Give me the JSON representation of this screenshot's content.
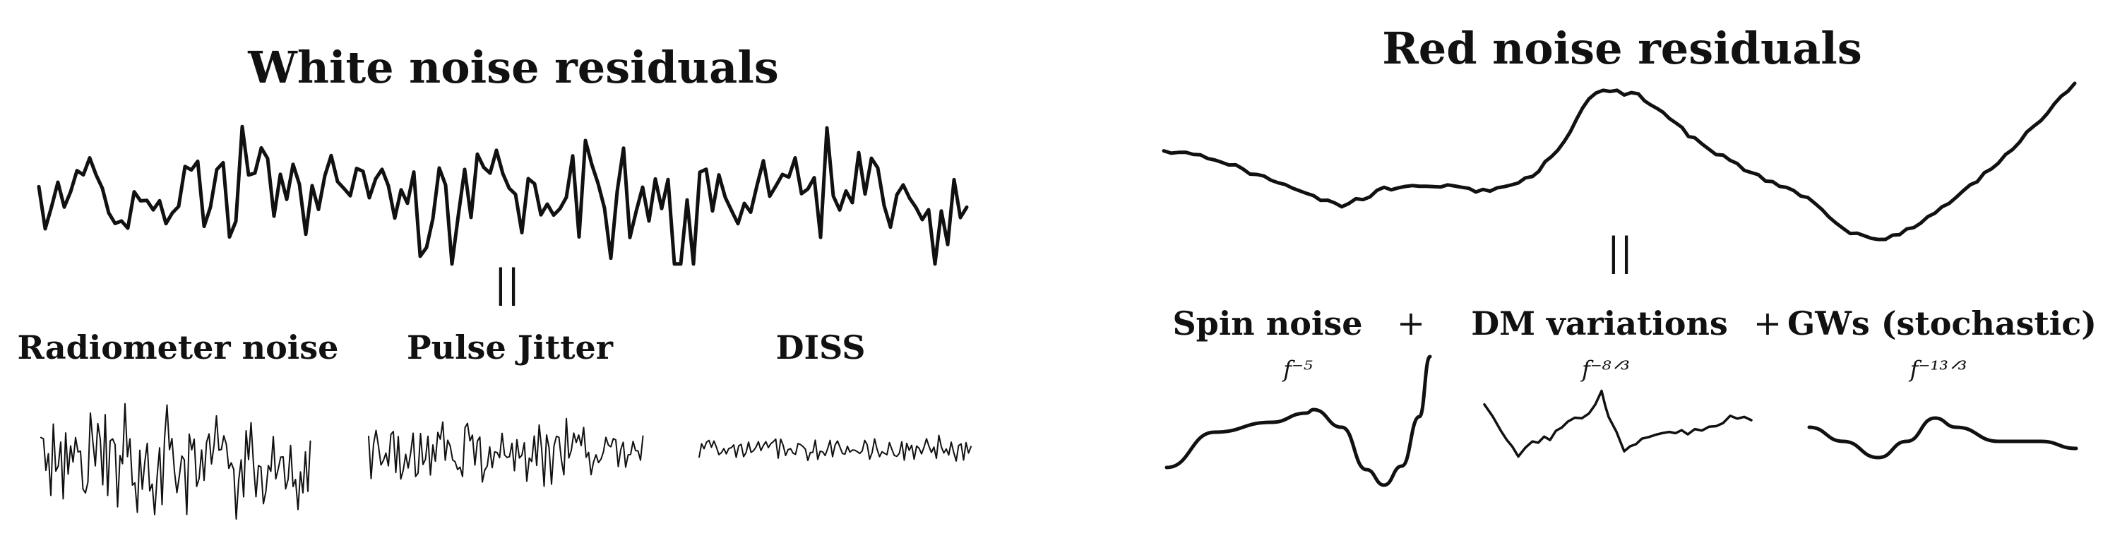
{
  "white_panel": {
    "title": "White noise residuals",
    "equals_symbol": "||",
    "components": [
      {
        "label": "Radiometer noise"
      },
      {
        "label": "Pulse Jitter"
      },
      {
        "label": "DISS"
      }
    ]
  },
  "red_panel": {
    "title": "Red noise residuals",
    "equals_symbol": "||",
    "components": [
      {
        "label": "Spin noise",
        "spectrum": "f⁻⁵"
      },
      {
        "label": "DM variations",
        "spectrum": "f⁻⁸ᐟ³"
      },
      {
        "label": "GWs (stochastic)",
        "spectrum": "f⁻¹³ᐟ³"
      }
    ],
    "operators": [
      "+",
      "+"
    ]
  }
}
